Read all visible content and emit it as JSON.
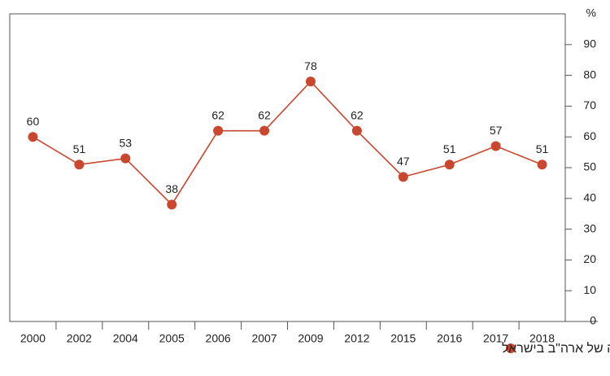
{
  "chart_data": {
    "type": "line",
    "y_axis_label": "%",
    "categories": [
      "2000",
      "2002",
      "2004",
      "2005",
      "2006",
      "2007",
      "2009",
      "2012",
      "2015",
      "2016",
      "2017",
      "2018"
    ],
    "series": [
      {
        "name": "ישראל תוכל להתמודד בהצלחה עם צמצום התמיכה של ארה\"ב בישראל",
        "color": "#c9472f",
        "values": [
          60,
          51,
          53,
          38,
          62,
          62,
          78,
          62,
          47,
          51,
          57,
          51
        ]
      }
    ],
    "ylim": [
      0,
      100
    ],
    "yticks": [
      0,
      10,
      20,
      30,
      40,
      50,
      60,
      70,
      80,
      90
    ]
  }
}
